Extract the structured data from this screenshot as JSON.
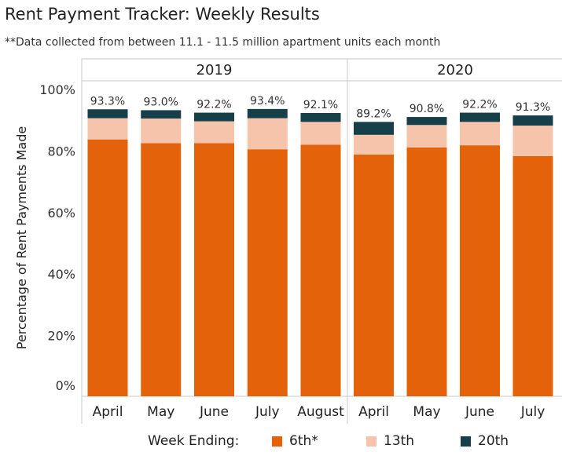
{
  "header": {
    "title": "Rent Payment Tracker: Weekly Results",
    "subtitle": "**Data collected from between 11.1 - 11.5 million apartment units each month"
  },
  "legend": {
    "title": "Week Ending:"
  },
  "colors": {
    "6th": "#E3620A",
    "13th": "#F5C4AA",
    "20th": "#163F4A",
    "grid": "#d0d0d0",
    "divider": "#c8c8c8"
  },
  "chart_data": {
    "type": "bar",
    "stacked": true,
    "title": "Rent Payment Tracker: Weekly Results",
    "subtitle": "**Data collected from between 11.1 - 11.5 million apartment units each month",
    "ylabel": "Percentage of Rent Payments Made",
    "xlabel": "",
    "ylim": [
      0,
      100
    ],
    "yticks": [
      "0%",
      "20%",
      "40%",
      "60%",
      "80%",
      "100%"
    ],
    "ytick_values": [
      0,
      20,
      40,
      60,
      80,
      100
    ],
    "grid": false,
    "legend_position": "bottom",
    "panels": [
      {
        "name": "2019",
        "categories": [
          "April",
          "May",
          "June",
          "July",
          "August"
        ],
        "totals": [
          "93.3%",
          "93.0%",
          "92.2%",
          "93.4%",
          "92.1%"
        ],
        "series": [
          {
            "name": "6th*",
            "values": [
              83.5,
              82.3,
              82.3,
              80.3,
              81.8
            ]
          },
          {
            "name": "13th",
            "values": [
              6.9,
              8.0,
              7.1,
              10.1,
              7.4
            ]
          },
          {
            "name": "20th",
            "values": [
              2.9,
              2.7,
              2.8,
              3.0,
              2.9
            ]
          }
        ]
      },
      {
        "name": "2020",
        "categories": [
          "April",
          "May",
          "June",
          "July"
        ],
        "totals": [
          "89.2%",
          "90.8%",
          "92.2%",
          "91.3%"
        ],
        "series": [
          {
            "name": "6th*",
            "values": [
              78.6,
              80.9,
              81.6,
              78.1
            ]
          },
          {
            "name": "13th",
            "values": [
              6.4,
              7.3,
              7.6,
              9.9
            ]
          },
          {
            "name": "20th",
            "values": [
              4.2,
              2.6,
              3.0,
              3.3
            ]
          }
        ]
      }
    ]
  }
}
